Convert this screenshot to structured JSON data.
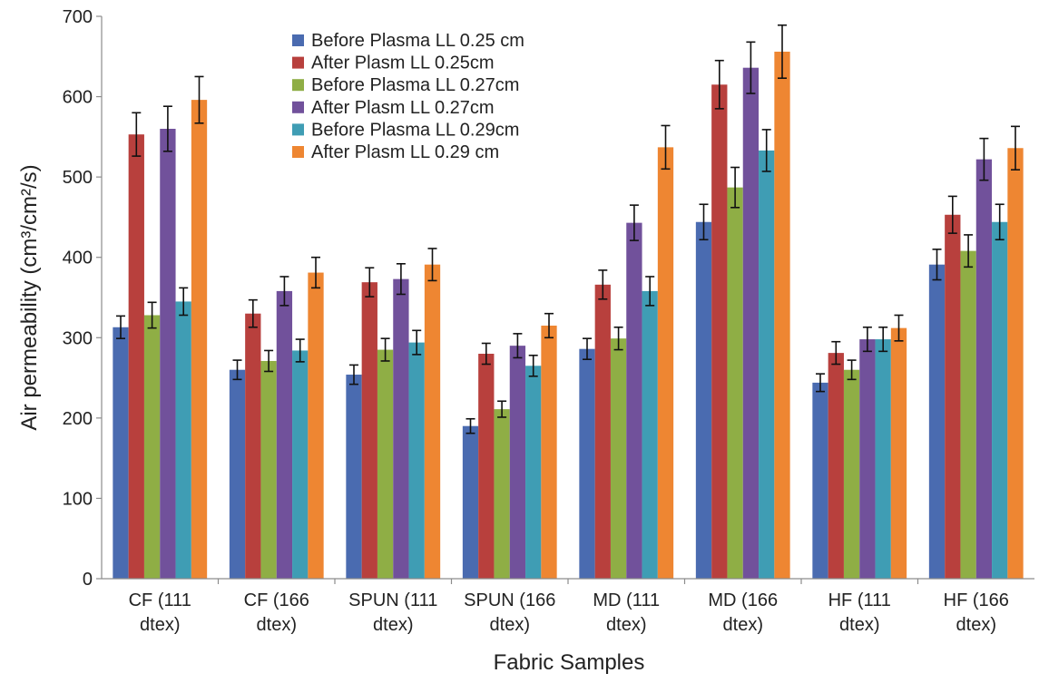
{
  "chart_data": {
    "type": "bar",
    "title": "",
    "xlabel": "Fabric Samples",
    "ylabel": "Air permeability (cm³/cm²/s)",
    "ylim": [
      0,
      700
    ],
    "yticks": [
      0,
      100,
      200,
      300,
      400,
      500,
      600,
      700
    ],
    "grid": false,
    "error_bars": true,
    "legend_position": "top-center",
    "categories": [
      [
        "CF (111",
        "dtex)"
      ],
      [
        "CF (166",
        "dtex)"
      ],
      [
        "SPUN (111",
        "dtex)"
      ],
      [
        "SPUN (166",
        "dtex)"
      ],
      [
        "MD (111",
        "dtex)"
      ],
      [
        "MD (166",
        "dtex)"
      ],
      [
        "HF (111",
        "dtex)"
      ],
      [
        "HF (166",
        "dtex)"
      ]
    ],
    "series": [
      {
        "name": "Before Plasma LL 0.25 cm",
        "color": "#4a6bb0",
        "values": [
          313,
          260,
          254,
          190,
          286,
          444,
          244,
          391
        ],
        "errors": [
          14,
          12,
          12,
          9,
          13,
          22,
          11,
          19
        ]
      },
      {
        "name": "After Plasm LL 0.25cm",
        "color": "#b8403d",
        "values": [
          553,
          330,
          369,
          280,
          366,
          615,
          281,
          453
        ],
        "errors": [
          27,
          17,
          18,
          13,
          18,
          30,
          14,
          23
        ]
      },
      {
        "name": "Before Plasma LL 0.27cm",
        "color": "#8fae45",
        "values": [
          328,
          271,
          285,
          211,
          299,
          487,
          260,
          408
        ],
        "errors": [
          16,
          13,
          14,
          10,
          14,
          25,
          12,
          20
        ]
      },
      {
        "name": "After Plasm LL 0.27cm",
        "color": "#71519b",
        "values": [
          560,
          358,
          373,
          290,
          443,
          636,
          298,
          522
        ],
        "errors": [
          28,
          18,
          19,
          15,
          22,
          32,
          15,
          26
        ]
      },
      {
        "name": "Before Plasma LL 0.29cm",
        "color": "#3f9db4",
        "values": [
          345,
          284,
          294,
          265,
          358,
          533,
          298,
          444
        ],
        "errors": [
          17,
          14,
          15,
          13,
          18,
          26,
          15,
          22
        ]
      },
      {
        "name": "After Plasm LL 0.29 cm",
        "color": "#ee8632",
        "values": [
          596,
          381,
          391,
          315,
          537,
          656,
          312,
          536
        ],
        "errors": [
          29,
          19,
          20,
          15,
          27,
          33,
          16,
          27
        ]
      }
    ]
  }
}
